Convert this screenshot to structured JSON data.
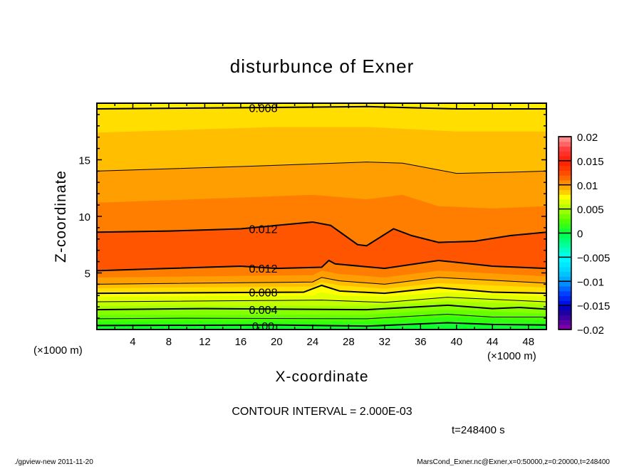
{
  "chart_data": {
    "type": "contour",
    "title": "disturbunce of Exner",
    "xlabel": "X-coordinate",
    "ylabel": "Z-coordinate",
    "x_unit_left": "(×1000 m)",
    "x_unit_right": "(×1000 m)",
    "xlim": [
      0,
      50
    ],
    "ylim": [
      0,
      20
    ],
    "xticks": [
      4,
      8,
      12,
      16,
      20,
      24,
      28,
      32,
      36,
      40,
      44,
      48
    ],
    "yticks": [
      5,
      10,
      15
    ],
    "contour_interval_text": "CONTOUR INTERVAL = 2.000E-03",
    "time_text": "t=248400 s",
    "footer_left": "./gpview-new  2011-11-20",
    "footer_right": "MarsCond_Exner.nc@Exner,x=0:50000,z=0:20000,t=248400",
    "bottom_fill": "#10ff30",
    "boundaries": [
      {
        "level": 0.0,
        "line": "thick",
        "fill_above": "#30ff10",
        "pts": [
          [
            0,
            0.35
          ],
          [
            20,
            0.4
          ],
          [
            30,
            0.3
          ],
          [
            39,
            0.6
          ],
          [
            44,
            0.45
          ],
          [
            50,
            0.4
          ]
        ]
      },
      {
        "level": 0.001,
        "line": "none",
        "fill_above": "#4cff00",
        "pts": [
          [
            0,
            0.7
          ],
          [
            20,
            0.75
          ],
          [
            30,
            0.7
          ],
          [
            39,
            1.1
          ],
          [
            50,
            0.8
          ]
        ]
      },
      {
        "level": 0.002,
        "line": "thin",
        "fill_above": "#66ff00",
        "pts": [
          [
            0,
            0.95
          ],
          [
            10,
            1.0
          ],
          [
            30,
            0.95
          ],
          [
            39,
            1.35
          ],
          [
            44,
            1.1
          ],
          [
            50,
            1.1
          ]
        ]
      },
      {
        "level": 0.003,
        "line": "none",
        "fill_above": "#86ff00",
        "pts": [
          [
            0,
            1.3
          ],
          [
            30,
            1.3
          ],
          [
            39,
            1.75
          ],
          [
            50,
            1.4
          ]
        ]
      },
      {
        "level": 0.004,
        "line": "thick",
        "fill_above": "#a4ff00",
        "pts": [
          [
            0,
            1.75
          ],
          [
            12,
            1.85
          ],
          [
            30,
            1.75
          ],
          [
            39,
            2.15
          ],
          [
            44,
            1.85
          ],
          [
            47,
            1.95
          ],
          [
            50,
            1.8
          ]
        ]
      },
      {
        "level": 0.005,
        "line": "none",
        "fill_above": "#c4ff00",
        "pts": [
          [
            0,
            2.1
          ],
          [
            30,
            2.1
          ],
          [
            39,
            2.5
          ],
          [
            50,
            2.2
          ]
        ]
      },
      {
        "level": 0.006,
        "line": "thin",
        "fill_above": "#e2ff00",
        "pts": [
          [
            0,
            2.45
          ],
          [
            25,
            2.6
          ],
          [
            32,
            2.4
          ],
          [
            39,
            2.85
          ],
          [
            50,
            2.45
          ]
        ]
      },
      {
        "level": 0.007,
        "line": "none",
        "fill_above": "#ffff00",
        "pts": [
          [
            0,
            2.9
          ],
          [
            24,
            3.0
          ],
          [
            25,
            3.3
          ],
          [
            27,
            3.0
          ],
          [
            32,
            2.9
          ],
          [
            39,
            3.3
          ],
          [
            50,
            2.9
          ]
        ]
      },
      {
        "level": 0.008,
        "line": "thick",
        "fill_above": "#ffde00",
        "pts": [
          [
            0,
            3.2
          ],
          [
            23,
            3.3
          ],
          [
            25,
            3.9
          ],
          [
            27,
            3.4
          ],
          [
            32,
            3.2
          ],
          [
            38,
            3.7
          ],
          [
            44,
            3.3
          ],
          [
            50,
            3.2
          ]
        ]
      },
      {
        "level": 0.009,
        "line": "none",
        "fill_above": "#ffbe00",
        "pts": [
          [
            0,
            3.65
          ],
          [
            24,
            3.8
          ],
          [
            25,
            4.2
          ],
          [
            27,
            3.9
          ],
          [
            32,
            3.6
          ],
          [
            38,
            4.1
          ],
          [
            50,
            3.7
          ]
        ]
      },
      {
        "level": 0.01,
        "line": "thin",
        "fill_above": "#ff9e00",
        "pts": [
          [
            0,
            4.0
          ],
          [
            24,
            4.2
          ],
          [
            25,
            4.6
          ],
          [
            27,
            4.3
          ],
          [
            32,
            4.0
          ],
          [
            38,
            4.6
          ],
          [
            50,
            4.1
          ]
        ]
      },
      {
        "level": 0.011,
        "line": "none",
        "fill_above": "#ff7e00",
        "pts": [
          [
            0,
            4.6
          ],
          [
            24,
            4.8
          ],
          [
            25,
            5.2
          ],
          [
            27,
            4.9
          ],
          [
            32,
            4.6
          ],
          [
            38,
            5.2
          ],
          [
            50,
            4.7
          ]
        ]
      },
      {
        "level": 0.012,
        "line": "thick",
        "fill_above": "#ff5500",
        "pts": [
          [
            0,
            5.2
          ],
          [
            8,
            5.4
          ],
          [
            16,
            5.6
          ],
          [
            20,
            5.4
          ],
          [
            25,
            5.5
          ],
          [
            25.8,
            6.1
          ],
          [
            26.5,
            5.8
          ],
          [
            32,
            5.4
          ],
          [
            38,
            6.1
          ],
          [
            44,
            5.6
          ],
          [
            50,
            5.4
          ]
        ]
      },
      {
        "level": 0.012,
        "line": "thick",
        "fill_above": "#ff7e00",
        "pts": [
          [
            0,
            8.6
          ],
          [
            8,
            8.7
          ],
          [
            12,
            8.8
          ],
          [
            16,
            8.9
          ],
          [
            24,
            9.5
          ],
          [
            26,
            9.2
          ],
          [
            29,
            7.5
          ],
          [
            30,
            7.4
          ],
          [
            33,
            8.9
          ],
          [
            35,
            8.3
          ],
          [
            38,
            7.7
          ],
          [
            42,
            7.8
          ],
          [
            46,
            8.3
          ],
          [
            50,
            8.6
          ]
        ]
      },
      {
        "level": 0.011,
        "line": "none",
        "fill_above": "#ff9e00",
        "pts": [
          [
            0,
            11.2
          ],
          [
            14,
            11.6
          ],
          [
            24,
            11.9
          ],
          [
            30,
            11.5
          ],
          [
            34,
            11.9
          ],
          [
            38,
            10.9
          ],
          [
            44,
            10.7
          ],
          [
            50,
            10.9
          ]
        ]
      },
      {
        "level": 0.01,
        "line": "thin",
        "fill_above": "#ffbe00",
        "pts": [
          [
            0,
            14.0
          ],
          [
            16,
            14.4
          ],
          [
            30,
            14.8
          ],
          [
            34,
            14.7
          ],
          [
            40,
            13.8
          ],
          [
            46,
            13.9
          ],
          [
            50,
            14.0
          ]
        ]
      },
      {
        "level": 0.009,
        "line": "none",
        "fill_above": "#ffde00",
        "pts": [
          [
            0,
            17.4
          ],
          [
            20,
            17.9
          ],
          [
            30,
            17.9
          ],
          [
            40,
            17.5
          ],
          [
            50,
            17.5
          ]
        ]
      },
      {
        "level": 0.008,
        "line": "thick",
        "fill_above": "#fff000",
        "pts": [
          [
            0,
            19.5
          ],
          [
            16,
            19.6
          ],
          [
            30,
            19.7
          ],
          [
            40,
            19.5
          ],
          [
            50,
            19.5
          ]
        ]
      }
    ],
    "contour_labels": [
      {
        "text": "0.008",
        "x": 18.5,
        "z": 19.6
      },
      {
        "text": "0.012",
        "x": 18.5,
        "z": 8.9
      },
      {
        "text": "0.012",
        "x": 18.5,
        "z": 5.4
      },
      {
        "text": "0.008",
        "x": 18.5,
        "z": 3.3
      },
      {
        "text": "0.004",
        "x": 18.5,
        "z": 1.75
      },
      {
        "text": "0.00",
        "x": 18.5,
        "z": 0.3
      }
    ],
    "colorbar": {
      "range": [
        -0.02,
        0.02
      ],
      "step": 0.001,
      "tick_labels": [
        "0.02",
        "0.015",
        "0.01",
        "0.005",
        "0",
        "-0.005",
        "-0.01",
        "-0.015",
        "-0.02"
      ],
      "tick_values": [
        0.02,
        0.015,
        0.01,
        0.005,
        0,
        -0.005,
        -0.01,
        -0.015,
        -0.02
      ],
      "stops": [
        [
          -0.02,
          "#8a00a8"
        ],
        [
          -0.016,
          "#1000a0"
        ],
        [
          -0.015,
          "#0000e0"
        ],
        [
          -0.0125,
          "#0040ff"
        ],
        [
          -0.01,
          "#00a0ff"
        ],
        [
          -0.0075,
          "#00d8ff"
        ],
        [
          -0.005,
          "#00ffff"
        ],
        [
          -0.003,
          "#00ffb0"
        ],
        [
          0,
          "#00ff40"
        ],
        [
          0.0025,
          "#50ff00"
        ],
        [
          0.005,
          "#a8ff00"
        ],
        [
          0.0075,
          "#ffff00"
        ],
        [
          0.008,
          "#ffe000"
        ],
        [
          0.01,
          "#ff9e00"
        ],
        [
          0.012,
          "#ff5500"
        ],
        [
          0.015,
          "#ff1a00"
        ],
        [
          0.0175,
          "#ff4040"
        ],
        [
          0.02,
          "#ff9a9a"
        ]
      ]
    }
  }
}
